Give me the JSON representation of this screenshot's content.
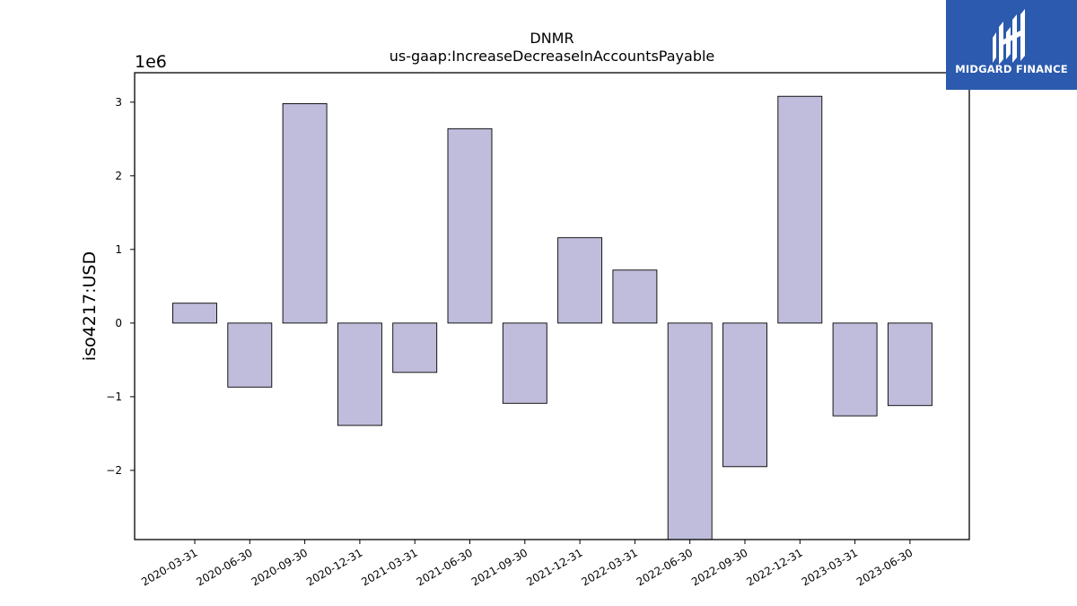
{
  "chart_data": {
    "type": "bar",
    "title": "DNMR",
    "subtitle": "us-gaap:IncreaseDecreaseInAccountsPayable",
    "xlabel": "",
    "ylabel": "iso4217:USD",
    "y_scale_label": "1e6",
    "categories": [
      "2020-03-31",
      "2020-06-30",
      "2020-09-30",
      "2020-12-31",
      "2021-03-31",
      "2021-06-30",
      "2021-09-30",
      "2021-12-31",
      "2022-03-31",
      "2022-06-30",
      "2022-09-30",
      "2022-12-31",
      "2023-03-31",
      "2023-06-30"
    ],
    "values": [
      270000,
      -870000,
      2980000,
      -1390000,
      -670000,
      2640000,
      -1090000,
      1160000,
      720000,
      -2940000,
      -1950000,
      3080000,
      -1260000,
      -1120000
    ],
    "ylim": [
      -2940000,
      3400000
    ],
    "yticks": [
      -2000000,
      -1000000,
      0,
      1000000,
      2000000,
      3000000
    ],
    "ytick_labels": [
      "−2",
      "−1",
      "0",
      "1",
      "2",
      "3"
    ],
    "grid": false,
    "bar_color": "#bfbddb",
    "bar_edge_color": "#000000"
  },
  "logo": {
    "text": "MIDGARD FINANCE",
    "bg_color": "#2b5aae"
  }
}
